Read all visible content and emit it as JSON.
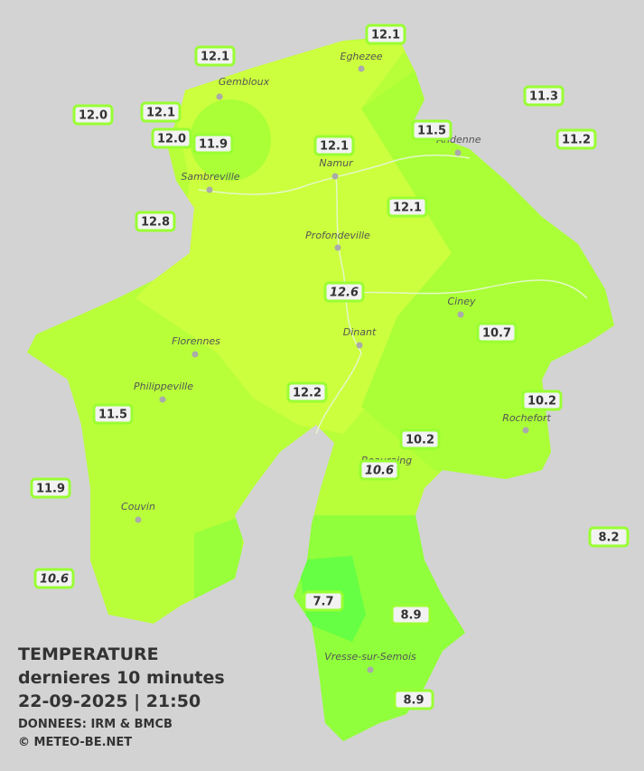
{
  "title": {
    "lines": [
      "TEMPERATURE",
      "dernieres 10 minutes",
      "22-09-2025  |  21:50"
    ]
  },
  "credits": [
    "DONNEES: IRM & BMCB",
    "© METEO-BE.NET"
  ],
  "cities": [
    "Eghezee",
    "Gembloux",
    "Andenne",
    "Namur",
    "Sambreville",
    "Profondeville",
    "Ciney",
    "Dinant",
    "Florennes",
    "Philippeville",
    "Rochefort",
    "Beauraing",
    "Couvin",
    "Vresse-sur-Semois"
  ],
  "stations": [
    {
      "value": "12.1"
    },
    {
      "value": "12.1"
    },
    {
      "value": "12.0"
    },
    {
      "value": "12.1"
    },
    {
      "value": "12.0"
    },
    {
      "value": "11.9"
    },
    {
      "value": "11.3"
    },
    {
      "value": "11.5"
    },
    {
      "value": "11.2"
    },
    {
      "value": "12.1"
    },
    {
      "value": "12.8"
    },
    {
      "value": "12.1"
    },
    {
      "value": "12.6",
      "italic": true
    },
    {
      "value": "10.7"
    },
    {
      "value": "12.2"
    },
    {
      "value": "10.2"
    },
    {
      "value": "11.5"
    },
    {
      "value": "10.2"
    },
    {
      "value": "10.6",
      "italic": true
    },
    {
      "value": "11.9"
    },
    {
      "value": "8.2"
    },
    {
      "value": "10.6",
      "italic": true
    },
    {
      "value": "7.7"
    },
    {
      "value": "8.9"
    },
    {
      "value": "8.9"
    }
  ]
}
